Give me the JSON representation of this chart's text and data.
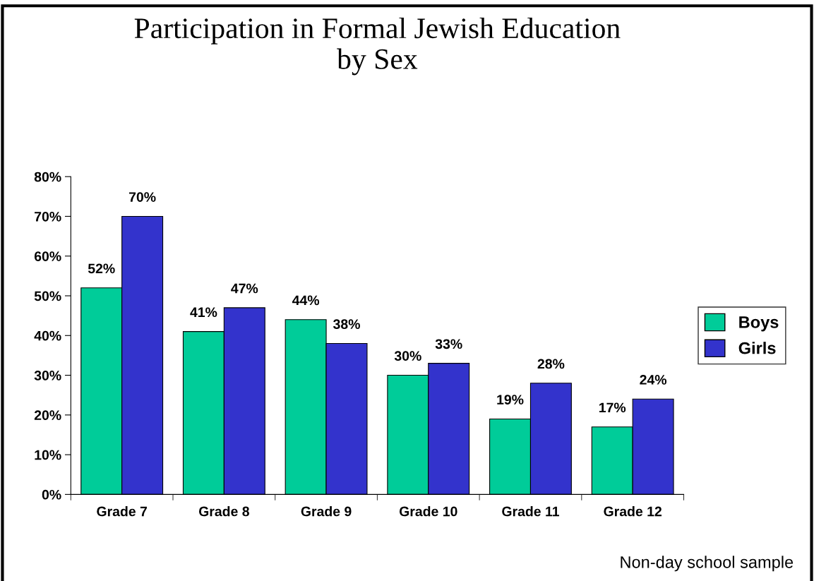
{
  "chart_data": {
    "type": "bar",
    "title": "Participation in Formal Jewish Education\nby Sex",
    "categories": [
      "Grade 7",
      "Grade 8",
      "Grade 9",
      "Grade 10",
      "Grade 11",
      "Grade 12"
    ],
    "series": [
      {
        "name": "Boys",
        "color": "#00cc99",
        "values": [
          52,
          41,
          44,
          30,
          19,
          17
        ],
        "value_labels": [
          "52%",
          "41%",
          "44%",
          "30%",
          "19%",
          "17%"
        ]
      },
      {
        "name": "Girls",
        "color": "#3333cc",
        "values": [
          70,
          47,
          38,
          33,
          28,
          24
        ],
        "value_labels": [
          "70%",
          "47%",
          "38%",
          "33%",
          "28%",
          "24%"
        ]
      }
    ],
    "ylim": [
      0,
      80
    ],
    "yticks": [
      {
        "value": 0,
        "label": "0%"
      },
      {
        "value": 10,
        "label": "10%"
      },
      {
        "value": 20,
        "label": "20%"
      },
      {
        "value": 30,
        "label": "30%"
      },
      {
        "value": 40,
        "label": "40%"
      },
      {
        "value": 50,
        "label": "50%"
      },
      {
        "value": 60,
        "label": "60%"
      },
      {
        "value": 70,
        "label": "70%"
      },
      {
        "value": 80,
        "label": "80%"
      }
    ],
    "grid": false,
    "legend": "right",
    "annotations": [
      "Non-day school sample"
    ]
  }
}
